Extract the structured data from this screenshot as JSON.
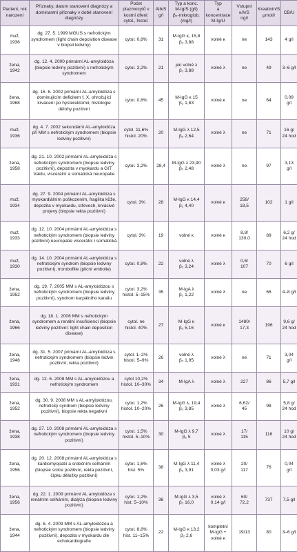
{
  "table": {
    "header": [
      "Pacient, rok narození",
      "Příznaky, datum stanovení diagnózy a dominantní příznaky v době stanovení diagnózy",
      "Počet plazmocytů v kostní dřeni: cytol., histol.",
      "Alb/S g/l",
      [
        "Typ a konc.",
        "M-Ig/S (g/l)",
        "β₂-mikroglob.",
        "(mg/l)"
      ],
      [
        "Typ",
        "a koncentrace",
        "M-Ig/U"
      ],
      [
        "Vstupní",
        "κ/λ/S",
        "ng/l"
      ],
      [
        "Kreatinin/S",
        "μmol/l"
      ],
      "CB/U"
    ],
    "rows": [
      [
        [
          "muž,",
          "1936"
        ],
        "dg. 27. 5. 1999 MGUS s nefrotickým syndromem (light chain deposition disease v biopsii ledviny)",
        "cytol. 0,8%",
        "31",
        [
          "M-IgG κ, 15,8",
          "β₂ 3,88"
        ],
        "volné κ",
        "ne",
        "143",
        "4 g/l"
      ],
      [
        [
          "žena,",
          "1942"
        ],
        "dg. 12. 4. 2000 primární AL-amyloidóza (biopsie ledviny pozitivní) s nefrotickým syndromem",
        "cytol. 3,2%",
        "21",
        [
          "jen volné λ",
          "β₂ 3,88"
        ],
        "volné λ",
        "ne",
        "49",
        "3–6 g/l"
      ],
      [
        [
          "žena,",
          "1968"
        ],
        "dg. 16. 6. 2002 primární AL-amyloidóza s dominujícím deficitem f. X, ohrožující krvácení po hysterektomii, histologie dělohy pozitivní",
        "cytol. 0,8%",
        "45",
        [
          "M-IgG κ 15",
          "β₂ 1,83"
        ],
        "volné κ",
        "ne",
        "64",
        "0,09 g/l"
      ],
      [
        [
          "muž,",
          "1936"
        ],
        "dg. 4. 7. 2002 sekundární AL-amyloidóza při MM s nefrotickým syndromem (biopsie ledviny pozitivní)",
        [
          "cytol. 11,6%",
          "histol. 20%"
        ],
        "20",
        [
          "M-IgG λ 12,5",
          "β₂ 2,64"
        ],
        "volné λ",
        "ne",
        "71",
        [
          "16 g/",
          "24 hod"
        ]
      ],
      [
        [
          "žena,",
          "1958"
        ],
        "dg. 21. 10. 2002 primární AL-amyloidóza s nefrotickým syndromem (biopsie ledviny pozitivní), depozita v myokardu a GIT traktu, viscerální a somatická neuropatie",
        "cytol. 3,2%",
        "28,4",
        [
          "M-IgG λ 23,90",
          "β₂ 2,48"
        ],
        "volné λ",
        "ne",
        "97",
        "3,13 g/l"
      ],
      [
        [
          "muž,",
          "1934"
        ],
        "dg. 27. 9. 2004 primární AL-amyloidóza s myokardiálním poškozením, fragilita kůže, depozita v myokardu, střevech, krvácivé projevy (biopsie rekta pozitivní)",
        "cytol. 3%",
        "28",
        [
          "M-IgG κ 14,4",
          "β₂ 4,40"
        ],
        "volné κ",
        [
          "258/",
          "18,5"
        ],
        "102",
        "1 g/l"
      ],
      [
        [
          "muž,",
          "1933"
        ],
        "dg. 12. 10. 2004 primární AL-amyloidóza s nefrotickým syndromem (biopsie ledviny pozitivní) neuropatie viscerální i somatická",
        "cytol. 3%",
        "19",
        "volné κ",
        "volné κ",
        [
          "8,8/",
          "130,0"
        ],
        "89",
        [
          "6,2 g/",
          "24 hod"
        ]
      ],
      [
        [
          "muž,",
          "1930"
        ],
        "dg. 14. 10. 2004 primární AL-amyloidóza s nefrotickým syndrom (biopsie ledviny pozitivní), trombofilie (plicní embolie)",
        "cytol. 0,8%",
        "22",
        [
          "volné λ",
          "β₂ 3,24"
        ],
        "volné λ",
        [
          "0,6/",
          "107"
        ],
        "70",
        "6 g/l"
      ],
      [
        [
          "žena,",
          "1952"
        ],
        "dg. 19. 7. 2005 MM s AL-amyloidózou s nefrotickým syndromem (biopsie ledviny pozitivní), syndrom karpálního kanálu",
        [
          "cytol. 3,2%",
          "histol. 5–15%"
        ],
        "35",
        [
          "M-IgA λ",
          "β₂ 1,22"
        ],
        "volné λ",
        "ne",
        "66",
        "4–8 g/l"
      ],
      [
        [
          "žena,",
          "1966"
        ],
        "dg. 18. 1. 2006 MM s nefrotickým syndromem a renální insuficiencí (biopsie ledviny pozitivní: light chain deposition disease)",
        [
          "cytol. ne",
          "histol. 40%"
        ],
        "27",
        [
          "M-IgG κ",
          "β₂ 5,16"
        ],
        "volné κ",
        [
          "1480/",
          "17,3"
        ],
        "196",
        [
          "9,6 g/",
          "24 hod"
        ]
      ],
      [
        [
          "žena,",
          "1948"
        ],
        "dg. 31. 5. 2007 primární AL-amyloidóza s nefrotickým syndromem (biopsie ledvin pozitivní, rekta pozitivní)",
        [
          "cytol. 1–2%",
          "histol. 5–9%"
        ],
        "26",
        [
          "volné λ",
          "β₂ 1,95"
        ],
        "volné λ",
        "ne",
        "71",
        "3,04 g/l"
      ],
      [
        [
          "žena,",
          "1931"
        ],
        "dg. 12. 6. 2008 MM s AL-amyloidózou a nefrotickým syndromem",
        [
          "cytol 10,2%",
          "histol. 10–30%"
        ],
        "34",
        "M-IgA λ",
        "volné λ",
        "227",
        "86",
        "5,7 g/l"
      ],
      [
        [
          "žena,",
          "1952"
        ],
        "dg. 30. 9. 2008 MM s AL-amyloidózou, nefrotický syndrom (biopsie ledviny pozitivní), biopsie rekta negativní",
        [
          "cytol. 1,2%",
          "histol. 10–20%"
        ],
        "26",
        [
          "M-IgG λ, 19,4",
          "β₂ 3,85"
        ],
        "volné λ",
        [
          "6,62/",
          "45"
        ],
        "98",
        [
          "5,8 g/",
          "24 hod"
        ]
      ],
      [
        [
          "žena,",
          "1938"
        ],
        "dg. 27. 10. 2008 primární AL-amyloidóza s nefrotickým syndromem (biopsie ledviny pozitivní)",
        [
          "cytol. 1,5%",
          "histol. 5–10%"
        ],
        "30",
        [
          "M-IgG λ 9,7",
          "β₂ 5"
        ],
        "volné λ",
        [
          "17/",
          "115"
        ],
        "116",
        [
          "10 g/",
          "24 hod"
        ]
      ],
      [
        [
          "žena,",
          "1956"
        ],
        "dg. 20. 12. 2008 primární AL-amyloidóza s kardiomyopatií a srdečním selháním (biopsie srdce pozitivní, rekta pozitivní, čípku děložky pozitivní)",
        [
          "cytol. 1,6%",
          "hist. 5%"
        ],
        "38",
        [
          "M-IgG λ 11,4",
          "β₂ 3,91"
        ],
        [
          "volné λ",
          "0,03 g/l"
        ],
        [
          "20/",
          "117"
        ],
        "76",
        "0,04 g/l"
      ],
      [
        [
          "žena,",
          "1956"
        ],
        "dg. 22. 1. 2009 primární AL amyloidóza s renálním selháním, dialýza (biopsie ledviny pozitivní)",
        [
          "cytol. 1,2%",
          "hist. 5–10%"
        ],
        "36",
        [
          "M-IgG λ 3,5",
          "β₂ 16,0"
        ],
        [
          "volné λ",
          "0,14 g/l"
        ],
        [
          "60/",
          "72,2"
        ],
        "737",
        "7,5 g/l"
      ],
      [
        [
          "žena,",
          "1944"
        ],
        "dg. 6. 4. 2009 MM s AL-amyloidózou a nefrotickým syndromem (biopsie ledviny pozitivní), depozita v myokardu dle echokardiografie",
        [
          "cytol. 8,8%",
          "hist. 11–15%"
        ],
        "22",
        [
          "M-IgG κ 13,2",
          "β₂ 2,6"
        ],
        [
          "kompletní",
          "M-IgG + volné κ"
        ],
        "19/13",
        "80",
        "3–6 g/l"
      ]
    ]
  }
}
